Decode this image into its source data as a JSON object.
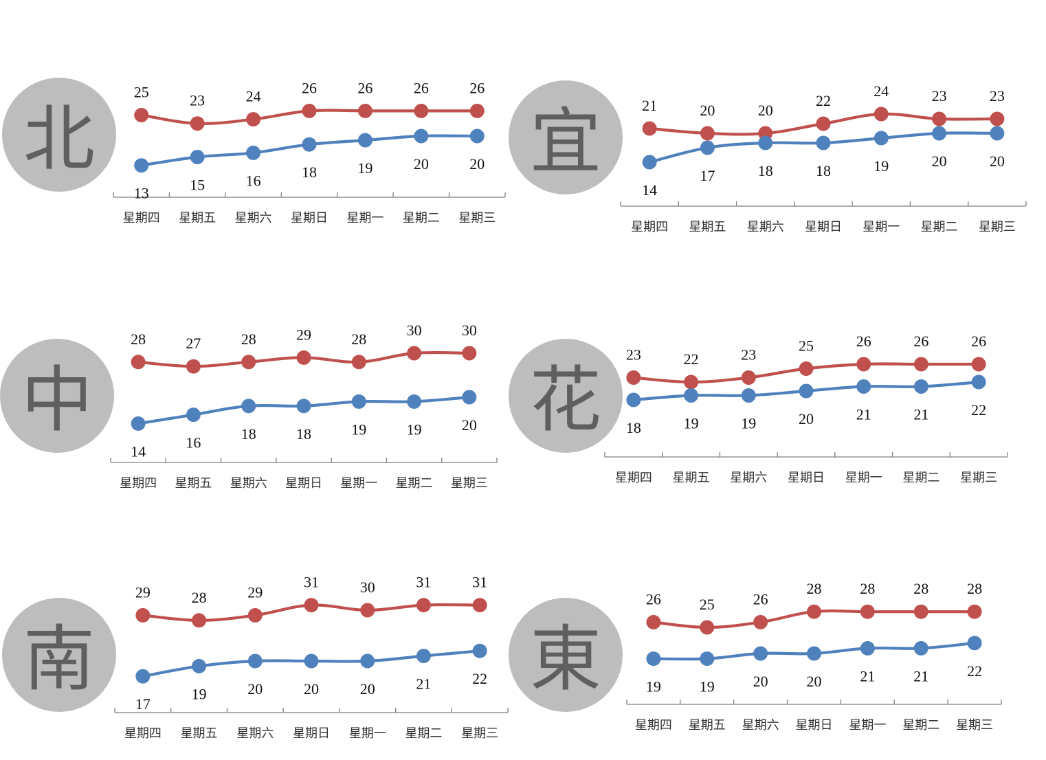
{
  "colors": {
    "high": "#c0504d",
    "low": "#4f81bd",
    "axis": "#7f7f7f",
    "circle": "#bdbdbd"
  },
  "chart_data": [
    {
      "type": "line",
      "region": "北",
      "categories": [
        "星期四",
        "星期五",
        "星期六",
        "星期日",
        "星期一",
        "星期二",
        "星期三"
      ],
      "series": [
        {
          "values": [
            25,
            23,
            24,
            26,
            26,
            26,
            26
          ]
        },
        {
          "values": [
            13,
            15,
            16,
            18,
            19,
            20,
            20
          ]
        }
      ]
    },
    {
      "type": "line",
      "region": "宜",
      "categories": [
        "星期四",
        "星期五",
        "星期六",
        "星期日",
        "星期一",
        "星期二",
        "星期三"
      ],
      "series": [
        {
          "values": [
            21,
            20,
            20,
            22,
            24,
            23,
            23
          ]
        },
        {
          "values": [
            14,
            17,
            18,
            18,
            19,
            20,
            20
          ]
        }
      ]
    },
    {
      "type": "line",
      "region": "中",
      "categories": [
        "星期四",
        "星期五",
        "星期六",
        "星期日",
        "星期一",
        "星期二",
        "星期三"
      ],
      "series": [
        {
          "values": [
            28,
            27,
            28,
            29,
            28,
            30,
            30
          ]
        },
        {
          "values": [
            14,
            16,
            18,
            18,
            19,
            19,
            20
          ]
        }
      ]
    },
    {
      "type": "line",
      "region": "花",
      "categories": [
        "星期四",
        "星期五",
        "星期六",
        "星期日",
        "星期一",
        "星期二",
        "星期三"
      ],
      "series": [
        {
          "values": [
            23,
            22,
            23,
            25,
            26,
            26,
            26
          ]
        },
        {
          "values": [
            18,
            19,
            19,
            20,
            21,
            21,
            22
          ]
        }
      ]
    },
    {
      "type": "line",
      "region": "南",
      "categories": [
        "星期四",
        "星期五",
        "星期六",
        "星期日",
        "星期一",
        "星期二",
        "星期三"
      ],
      "series": [
        {
          "values": [
            29,
            28,
            29,
            31,
            30,
            31,
            31
          ]
        },
        {
          "values": [
            17,
            19,
            20,
            20,
            20,
            21,
            22
          ]
        }
      ]
    },
    {
      "type": "line",
      "region": "東",
      "categories": [
        "星期四",
        "星期五",
        "星期六",
        "星期日",
        "星期一",
        "星期二",
        "星期三"
      ],
      "series": [
        {
          "values": [
            26,
            25,
            26,
            28,
            28,
            28,
            28
          ]
        },
        {
          "values": [
            19,
            19,
            20,
            20,
            21,
            21,
            22
          ]
        }
      ]
    }
  ]
}
